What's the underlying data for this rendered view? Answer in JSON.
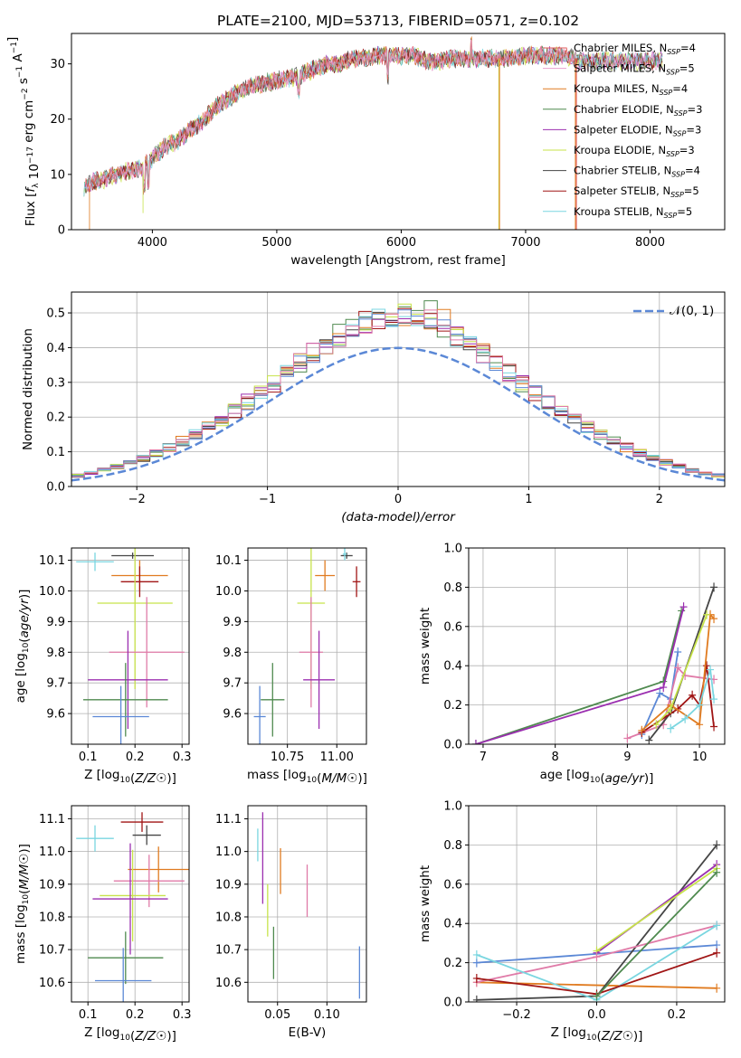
{
  "title": "PLATE=2100, MJD=53713, FIBERID=0571, z=0.102",
  "colors": [
    "#e8a0cf",
    "#e05a5a",
    "#e07b20",
    "#4f8a4f",
    "#9b2fb0",
    "#c7e34a",
    "#454545",
    "#a01515",
    "#7ad6e0",
    "#5b88d6",
    "#e07ba8"
  ],
  "chart_data": [
    {
      "type": "line",
      "name": "spectrum",
      "xlabel": "wavelength [Angstrom, rest frame]",
      "ylabel": "Flux [f_λ 10^-17 erg cm^-2 s^-1 A^-1]",
      "xlim": [
        3350,
        8600
      ],
      "ylim": [
        0,
        35.5
      ],
      "xticks": [
        4000,
        5000,
        6000,
        7000,
        8000
      ],
      "yticks": [
        0,
        10,
        20,
        30
      ],
      "grid": false,
      "legend_placement": "right",
      "series": [
        {
          "name": "Chabrier MILES, N",
          "sub": "SSP",
          "suffix": "=4"
        },
        {
          "name": "Salpeter MILES, N",
          "sub": "SSP",
          "suffix": "=5"
        },
        {
          "name": "Kroupa MILES, N",
          "sub": "SSP",
          "suffix": "=4"
        },
        {
          "name": "Chabrier ELODIE, N",
          "sub": "SSP",
          "suffix": "=3"
        },
        {
          "name": "Salpeter ELODIE, N",
          "sub": "SSP",
          "suffix": "=3"
        },
        {
          "name": "Kroupa ELODIE, N",
          "sub": "SSP",
          "suffix": "=3"
        },
        {
          "name": "Chabrier STELIB, N",
          "sub": "SSP",
          "suffix": "=4"
        },
        {
          "name": "Salpeter STELIB, N",
          "sub": "SSP",
          "suffix": "=5"
        },
        {
          "name": "Kroupa STELIB, N",
          "sub": "SSP",
          "suffix": "=5"
        }
      ],
      "continuum": {
        "x": [
          3450,
          3500,
          3600,
          3700,
          3800,
          3900,
          4000,
          4100,
          4200,
          4300,
          4400,
          4500,
          4600,
          4700,
          4800,
          4900,
          5000,
          5100,
          5200,
          5300,
          5400,
          5500,
          5600,
          5700,
          5800,
          5900,
          6000,
          6100,
          6200,
          6300,
          6400,
          6500,
          6600,
          6700,
          6800,
          6900,
          7000,
          7100,
          7200,
          7300,
          7400
        ],
        "y": [
          7.5,
          8.5,
          9,
          10,
          10.5,
          11,
          13,
          15,
          16,
          18,
          19.5,
          22,
          23.5,
          25,
          26,
          26.5,
          27,
          27.5,
          28,
          29,
          30,
          30,
          31,
          31,
          31.5,
          31.5,
          31.5,
          31.5,
          30.5,
          30.5,
          31,
          31,
          31,
          31,
          31,
          31,
          31.5,
          31.5,
          31.5,
          31.5,
          31
        ]
      }
    },
    {
      "type": "step",
      "name": "residual-histogram",
      "xlabel": "(data-model)/error",
      "ylabel": "Normed distribution",
      "xlim": [
        -2.5,
        2.5
      ],
      "ylim": [
        0,
        0.56
      ],
      "xticks": [
        -2,
        -1,
        0,
        1,
        2
      ],
      "yticks": [
        0.0,
        0.1,
        0.2,
        0.3,
        0.4,
        0.5
      ],
      "grid": true,
      "legend": "𝒩(0, 1)",
      "legend_placement": "top-right",
      "bin_width": 0.1,
      "center_bin_values": [
        0.37,
        0.39,
        0.42,
        0.44,
        0.45,
        0.47,
        0.49,
        0.51,
        0.49,
        0.46,
        0.42,
        0.4,
        0.38,
        0.35
      ],
      "center_bin_x0": -0.6
    },
    {
      "type": "scatter",
      "name": "age-vs-z",
      "xlabel": "Z [log10(Z/Z☉)]",
      "ylabel": "age [log10(age/yr)]",
      "xlim": [
        0.065,
        0.315
      ],
      "ylim": [
        9.5,
        10.14
      ],
      "xticks": [
        0.1,
        0.2,
        0.3
      ],
      "yticks": [
        9.6,
        9.7,
        9.8,
        9.9,
        10.0,
        10.1
      ],
      "grid": true,
      "points": [
        {
          "x": 0.195,
          "y": 10.115,
          "xerr": 0.045,
          "yerr": 0.01,
          "c": 6
        },
        {
          "x": 0.115,
          "y": 10.095,
          "xerr": 0.04,
          "yerr": 0.03,
          "c": 8
        },
        {
          "x": 0.21,
          "y": 10.05,
          "xerr": 0.06,
          "yerr": 0.05,
          "c": 2
        },
        {
          "x": 0.21,
          "y": 10.03,
          "xerr": 0.04,
          "yerr": 0.05,
          "c": 7
        },
        {
          "x": 0.2,
          "y": 9.96,
          "xerr": 0.08,
          "yerr": 0.28,
          "c": 5
        },
        {
          "x": 0.225,
          "y": 9.8,
          "xerr": 0.08,
          "yerr": 0.18,
          "c": 10
        },
        {
          "x": 0.185,
          "y": 9.71,
          "xerr": 0.085,
          "yerr": 0.16,
          "c": 4
        },
        {
          "x": 0.18,
          "y": 9.645,
          "xerr": 0.09,
          "yerr": 0.12,
          "c": 3
        },
        {
          "x": 0.17,
          "y": 9.59,
          "xerr": 0.06,
          "yerr": 0.1,
          "c": 9
        }
      ]
    },
    {
      "type": "scatter",
      "name": "age-vs-mass",
      "xlabel": "mass [log10(M/M☉)]",
      "ylabel": "",
      "xlim": [
        10.55,
        11.15
      ],
      "ylim": [
        9.5,
        10.14
      ],
      "xticks": [
        10.75,
        11.0
      ],
      "yticks": [
        9.6,
        9.7,
        9.8,
        9.9,
        10.0,
        10.1
      ],
      "grid": true,
      "points": [
        {
          "x": 11.05,
          "y": 10.115,
          "xerr": 0.03,
          "yerr": 0.01,
          "c": 6
        },
        {
          "x": 11.04,
          "y": 10.12,
          "xerr": 0.01,
          "yerr": 0.02,
          "c": 8
        },
        {
          "x": 10.94,
          "y": 10.05,
          "xerr": 0.05,
          "yerr": 0.05,
          "c": 2
        },
        {
          "x": 11.1,
          "y": 10.03,
          "xerr": 0.02,
          "yerr": 0.05,
          "c": 7
        },
        {
          "x": 10.87,
          "y": 9.96,
          "xerr": 0.07,
          "yerr": 0.28,
          "c": 5
        },
        {
          "x": 10.87,
          "y": 9.8,
          "xerr": 0.06,
          "yerr": 0.18,
          "c": 10
        },
        {
          "x": 10.91,
          "y": 9.71,
          "xerr": 0.08,
          "yerr": 0.16,
          "c": 4
        },
        {
          "x": 10.675,
          "y": 9.645,
          "xerr": 0.06,
          "yerr": 0.12,
          "c": 3
        },
        {
          "x": 10.61,
          "y": 9.59,
          "xerr": 0.03,
          "yerr": 0.1,
          "c": 9
        }
      ]
    },
    {
      "type": "line",
      "name": "weight-vs-age",
      "xlabel": "age [log10(age/yr)]",
      "ylabel": "mass weight",
      "xlim": [
        6.8,
        10.35
      ],
      "ylim": [
        0,
        1.0
      ],
      "xticks": [
        7,
        8,
        9,
        10
      ],
      "yticks": [
        0.0,
        0.2,
        0.4,
        0.6,
        0.8,
        1.0
      ],
      "grid": true,
      "series": [
        {
          "c": 3,
          "x": [
            6.9,
            9.5,
            9.75
          ],
          "y": [
            0.0,
            0.32,
            0.68
          ]
        },
        {
          "c": 4,
          "x": [
            6.9,
            9.5,
            9.78
          ],
          "y": [
            0.0,
            0.29,
            0.7
          ]
        },
        {
          "c": 9,
          "x": [
            9.2,
            9.45,
            9.6,
            9.7
          ],
          "y": [
            0.05,
            0.26,
            0.23,
            0.47
          ]
        },
        {
          "c": 10,
          "x": [
            9.0,
            9.5,
            9.7,
            9.8,
            10.2
          ],
          "y": [
            0.03,
            0.1,
            0.39,
            0.35,
            0.33
          ]
        },
        {
          "c": 6,
          "x": [
            9.3,
            9.6,
            10.2
          ],
          "y": [
            0.02,
            0.16,
            0.8
          ]
        },
        {
          "c": 7,
          "x": [
            9.2,
            9.7,
            9.9,
            10.0,
            10.1,
            10.2
          ],
          "y": [
            0.06,
            0.18,
            0.25,
            0.2,
            0.4,
            0.09
          ]
        },
        {
          "c": 2,
          "x": [
            9.2,
            9.6,
            10.0,
            10.15,
            10.2
          ],
          "y": [
            0.07,
            0.2,
            0.1,
            0.66,
            0.64
          ]
        },
        {
          "c": 5,
          "x": [
            9.4,
            9.6,
            10.1
          ],
          "y": [
            0.1,
            0.18,
            0.66
          ]
        },
        {
          "c": 8,
          "x": [
            9.6,
            9.8,
            10.0,
            10.15,
            10.2
          ],
          "y": [
            0.08,
            0.13,
            0.2,
            0.38,
            0.23
          ]
        }
      ]
    },
    {
      "type": "scatter",
      "name": "mass-vs-z",
      "xlabel": "Z [log10(Z/Z☉)]",
      "ylabel": "mass [log10(M/M☉)]",
      "xlim": [
        0.065,
        0.315
      ],
      "ylim": [
        10.54,
        11.14
      ],
      "xticks": [
        0.1,
        0.2,
        0.3
      ],
      "yticks": [
        10.6,
        10.7,
        10.8,
        10.9,
        11.0,
        11.1
      ],
      "grid": true,
      "points": [
        {
          "x": 0.215,
          "y": 11.09,
          "xerr": 0.045,
          "yerr": 0.03,
          "c": 7
        },
        {
          "x": 0.225,
          "y": 11.05,
          "xerr": 0.03,
          "yerr": 0.03,
          "c": 6
        },
        {
          "x": 0.115,
          "y": 11.04,
          "xerr": 0.04,
          "yerr": 0.04,
          "c": 8
        },
        {
          "x": 0.25,
          "y": 10.945,
          "xerr": 0.065,
          "yerr": 0.07,
          "c": 2
        },
        {
          "x": 0.23,
          "y": 10.91,
          "xerr": 0.075,
          "yerr": 0.08,
          "c": 10
        },
        {
          "x": 0.195,
          "y": 10.865,
          "xerr": 0.07,
          "yerr": 0.14,
          "c": 5
        },
        {
          "x": 0.19,
          "y": 10.855,
          "xerr": 0.08,
          "yerr": 0.17,
          "c": 4
        },
        {
          "x": 0.18,
          "y": 10.675,
          "xerr": 0.08,
          "yerr": 0.08,
          "c": 3
        },
        {
          "x": 0.175,
          "y": 10.605,
          "xerr": 0.06,
          "yerr": 0.1,
          "c": 9
        }
      ]
    },
    {
      "type": "errorbar",
      "name": "mass-vs-ebv",
      "xlabel": "E(B-V)",
      "ylabel": "",
      "xlim": [
        0.02,
        0.14
      ],
      "ylim": [
        10.54,
        11.14
      ],
      "xticks": [
        0.05,
        0.1
      ],
      "yticks": [
        10.6,
        10.7,
        10.8,
        10.9,
        11.0,
        11.1
      ],
      "grid": true,
      "points": [
        {
          "x": 0.03,
          "y": 11.02,
          "yerr": 0.05,
          "c": 8
        },
        {
          "x": 0.035,
          "y": 10.98,
          "yerr": 0.14,
          "c": 4
        },
        {
          "x": 0.04,
          "y": 10.82,
          "yerr": 0.08,
          "c": 5
        },
        {
          "x": 0.046,
          "y": 10.69,
          "yerr": 0.08,
          "c": 3
        },
        {
          "x": 0.053,
          "y": 10.94,
          "yerr": 0.07,
          "c": 2
        },
        {
          "x": 0.08,
          "y": 10.88,
          "yerr": 0.08,
          "c": 10
        },
        {
          "x": 0.133,
          "y": 10.63,
          "yerr": 0.08,
          "c": 9
        }
      ]
    },
    {
      "type": "line",
      "name": "weight-vs-z",
      "xlabel": "Z [log10(Z/Z☉)]",
      "ylabel": "mass weight",
      "xlim": [
        -0.32,
        0.32
      ],
      "ylim": [
        0,
        1.0
      ],
      "xticks": [
        -0.2,
        0.0,
        0.2
      ],
      "yticks": [
        0.0,
        0.2,
        0.4,
        0.6,
        0.8,
        1.0
      ],
      "grid": true,
      "series": [
        {
          "c": 9,
          "x": [
            -0.3,
            0.3
          ],
          "y": [
            0.2,
            0.29
          ]
        },
        {
          "c": 2,
          "x": [
            -0.3,
            0.3
          ],
          "y": [
            0.1,
            0.07
          ]
        },
        {
          "c": 6,
          "x": [
            -0.3,
            0.0,
            0.3
          ],
          "y": [
            0.01,
            0.03,
            0.8
          ]
        },
        {
          "c": 4,
          "x": [
            0.0,
            0.3
          ],
          "y": [
            0.25,
            0.7
          ]
        },
        {
          "c": 5,
          "x": [
            0.0,
            0.3
          ],
          "y": [
            0.26,
            0.68
          ]
        },
        {
          "c": 10,
          "x": [
            -0.3,
            0.0,
            0.3
          ],
          "y": [
            0.1,
            0.23,
            0.39
          ]
        },
        {
          "c": 8,
          "x": [
            -0.3,
            0.0,
            0.3
          ],
          "y": [
            0.24,
            0.01,
            0.39
          ]
        },
        {
          "c": 7,
          "x": [
            -0.3,
            0.0,
            0.3
          ],
          "y": [
            0.12,
            0.04,
            0.25
          ]
        },
        {
          "c": 3,
          "x": [
            0.0,
            0.3
          ],
          "y": [
            0.03,
            0.66
          ]
        }
      ]
    }
  ]
}
